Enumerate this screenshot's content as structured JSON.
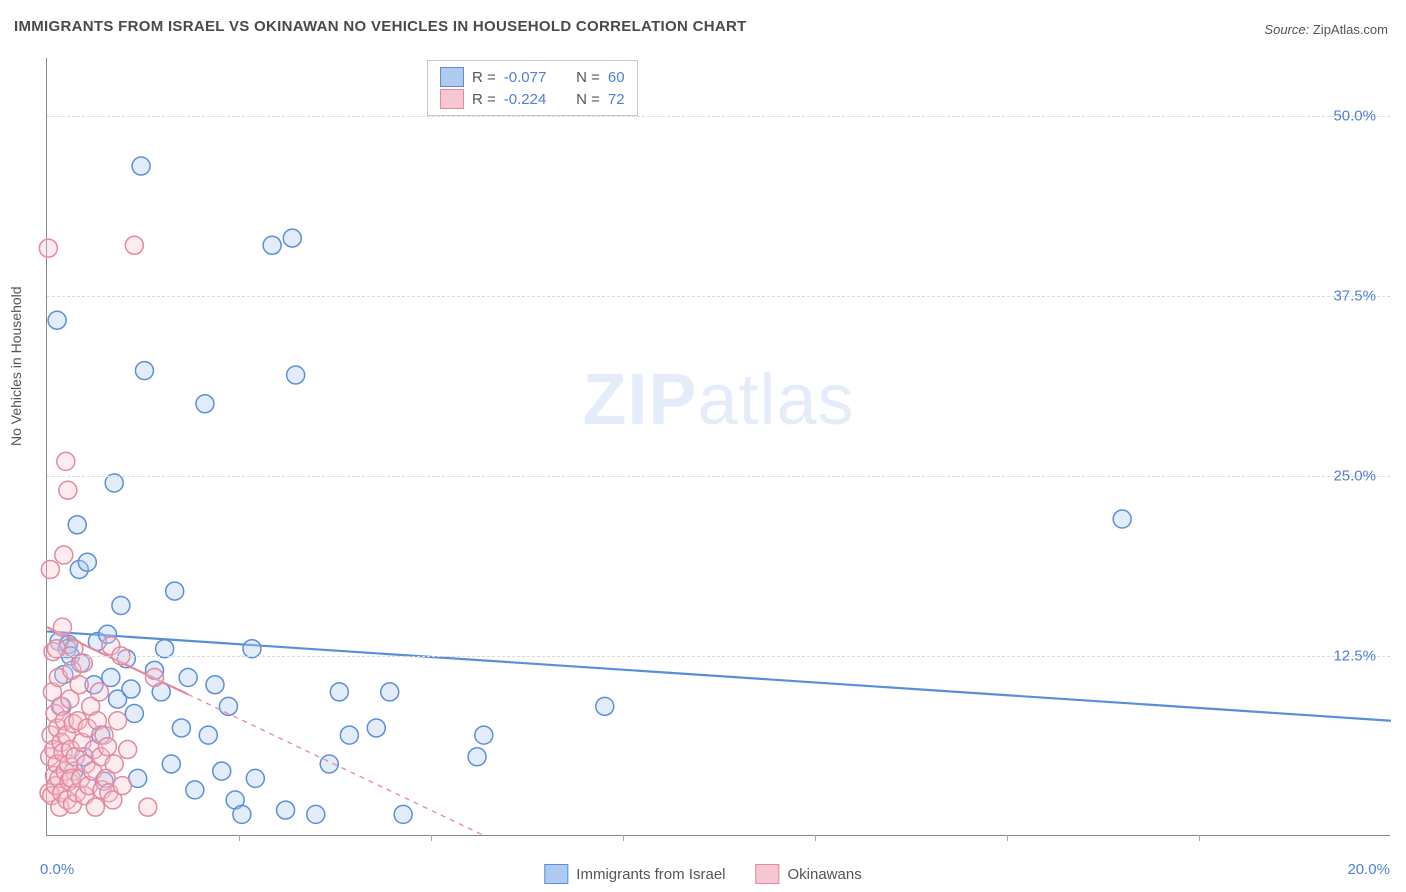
{
  "title": "IMMIGRANTS FROM ISRAEL VS OKINAWAN NO VEHICLES IN HOUSEHOLD CORRELATION CHART",
  "source_label": "Source:",
  "source_value": "ZipAtlas.com",
  "watermark_a": "ZIP",
  "watermark_b": "atlas",
  "chart": {
    "type": "scatter",
    "xlim": [
      0,
      20
    ],
    "ylim": [
      0,
      54
    ],
    "xticks_major": [
      0,
      20
    ],
    "xticks_minor": [
      2.86,
      5.71,
      8.57,
      11.43,
      14.28,
      17.14
    ],
    "yticks": [
      12.5,
      25.0,
      37.5,
      50.0
    ],
    "xtick_labels": [
      "0.0%",
      "20.0%"
    ],
    "ytick_labels": [
      "12.5%",
      "25.0%",
      "37.5%",
      "50.0%"
    ],
    "y_axis_label": "No Vehicles in Household",
    "grid_color": "#d9d9d9",
    "axis_color": "#888888",
    "tick_label_color": "#4f7fd6",
    "background_color": "#ffffff",
    "point_radius": 9,
    "point_stroke_width": 1.5,
    "point_fill_opacity": 0.35,
    "line_width": 2.2,
    "series": [
      {
        "name": "Immigrants from Israel",
        "color_stroke": "#5a8fd8",
        "color_fill": "#aecbef",
        "R": "-0.077",
        "N": "60",
        "trend": {
          "y_at_x0": 14.2,
          "y_at_x20": 8.0
        },
        "points": [
          [
            0.15,
            35.8
          ],
          [
            0.18,
            13.5
          ],
          [
            0.22,
            9.0
          ],
          [
            0.25,
            11.2
          ],
          [
            0.3,
            13.0
          ],
          [
            0.32,
            13.3
          ],
          [
            0.35,
            12.5
          ],
          [
            0.4,
            4.5
          ],
          [
            0.45,
            21.6
          ],
          [
            0.48,
            18.5
          ],
          [
            0.5,
            12.0
          ],
          [
            0.55,
            5.5
          ],
          [
            0.6,
            19.0
          ],
          [
            0.7,
            10.5
          ],
          [
            0.75,
            13.5
          ],
          [
            0.8,
            7.0
          ],
          [
            0.85,
            3.8
          ],
          [
            0.9,
            14.0
          ],
          [
            0.95,
            11.0
          ],
          [
            1.0,
            24.5
          ],
          [
            1.05,
            9.5
          ],
          [
            1.1,
            16.0
          ],
          [
            1.18,
            12.3
          ],
          [
            1.25,
            10.2
          ],
          [
            1.3,
            8.5
          ],
          [
            1.35,
            4.0
          ],
          [
            1.4,
            46.5
          ],
          [
            1.45,
            32.3
          ],
          [
            1.6,
            11.5
          ],
          [
            1.7,
            10.0
          ],
          [
            1.75,
            13.0
          ],
          [
            1.85,
            5.0
          ],
          [
            1.9,
            17.0
          ],
          [
            2.0,
            7.5
          ],
          [
            2.1,
            11.0
          ],
          [
            2.2,
            3.2
          ],
          [
            2.35,
            30.0
          ],
          [
            2.4,
            7.0
          ],
          [
            2.5,
            10.5
          ],
          [
            2.6,
            4.5
          ],
          [
            2.7,
            9.0
          ],
          [
            2.8,
            2.5
          ],
          [
            2.9,
            1.5
          ],
          [
            3.05,
            13.0
          ],
          [
            3.1,
            4.0
          ],
          [
            3.35,
            41.0
          ],
          [
            3.55,
            1.8
          ],
          [
            3.65,
            41.5
          ],
          [
            3.7,
            32.0
          ],
          [
            4.0,
            1.5
          ],
          [
            4.2,
            5.0
          ],
          [
            4.35,
            10.0
          ],
          [
            4.5,
            7.0
          ],
          [
            4.9,
            7.5
          ],
          [
            5.1,
            10.0
          ],
          [
            5.3,
            1.5
          ],
          [
            6.4,
            5.5
          ],
          [
            6.5,
            7.0
          ],
          [
            8.3,
            9.0
          ],
          [
            16.0,
            22.0
          ]
        ]
      },
      {
        "name": "Okinawans",
        "color_stroke": "#e28aa0",
        "color_fill": "#f6c6d2",
        "R": "-0.224",
        "N": "72",
        "trend": {
          "y_at_x0": 14.5,
          "y_at_x20": -30.0,
          "dashed_after_x": 2.1
        },
        "points": [
          [
            0.02,
            40.8
          ],
          [
            0.03,
            3.0
          ],
          [
            0.04,
            5.5
          ],
          [
            0.05,
            18.5
          ],
          [
            0.06,
            7.0
          ],
          [
            0.07,
            2.8
          ],
          [
            0.08,
            10.0
          ],
          [
            0.09,
            12.8
          ],
          [
            0.1,
            6.0
          ],
          [
            0.11,
            4.2
          ],
          [
            0.12,
            8.5
          ],
          [
            0.13,
            3.5
          ],
          [
            0.14,
            13.0
          ],
          [
            0.15,
            5.0
          ],
          [
            0.16,
            7.5
          ],
          [
            0.17,
            11.0
          ],
          [
            0.18,
            4.0
          ],
          [
            0.19,
            2.0
          ],
          [
            0.2,
            9.0
          ],
          [
            0.21,
            6.5
          ],
          [
            0.22,
            3.0
          ],
          [
            0.23,
            14.5
          ],
          [
            0.24,
            5.8
          ],
          [
            0.25,
            19.5
          ],
          [
            0.26,
            8.0
          ],
          [
            0.27,
            4.5
          ],
          [
            0.28,
            26.0
          ],
          [
            0.29,
            7.0
          ],
          [
            0.3,
            2.5
          ],
          [
            0.31,
            24.0
          ],
          [
            0.32,
            5.0
          ],
          [
            0.33,
            3.8
          ],
          [
            0.34,
            9.5
          ],
          [
            0.35,
            6.0
          ],
          [
            0.36,
            4.0
          ],
          [
            0.37,
            11.5
          ],
          [
            0.38,
            2.2
          ],
          [
            0.39,
            7.8
          ],
          [
            0.4,
            13.0
          ],
          [
            0.42,
            5.5
          ],
          [
            0.44,
            3.0
          ],
          [
            0.46,
            8.0
          ],
          [
            0.48,
            10.5
          ],
          [
            0.5,
            4.0
          ],
          [
            0.52,
            6.5
          ],
          [
            0.54,
            12.0
          ],
          [
            0.56,
            2.8
          ],
          [
            0.58,
            5.0
          ],
          [
            0.6,
            7.5
          ],
          [
            0.62,
            3.5
          ],
          [
            0.65,
            9.0
          ],
          [
            0.68,
            4.5
          ],
          [
            0.7,
            6.0
          ],
          [
            0.72,
            2.0
          ],
          [
            0.75,
            8.0
          ],
          [
            0.78,
            10.0
          ],
          [
            0.8,
            5.5
          ],
          [
            0.82,
            3.2
          ],
          [
            0.85,
            7.0
          ],
          [
            0.88,
            4.0
          ],
          [
            0.9,
            6.2
          ],
          [
            0.92,
            3.0
          ],
          [
            0.95,
            13.2
          ],
          [
            0.98,
            2.5
          ],
          [
            1.0,
            5.0
          ],
          [
            1.05,
            8.0
          ],
          [
            1.1,
            12.5
          ],
          [
            1.12,
            3.5
          ],
          [
            1.2,
            6.0
          ],
          [
            1.3,
            41.0
          ],
          [
            1.5,
            2.0
          ],
          [
            1.6,
            11.0
          ]
        ]
      }
    ]
  }
}
